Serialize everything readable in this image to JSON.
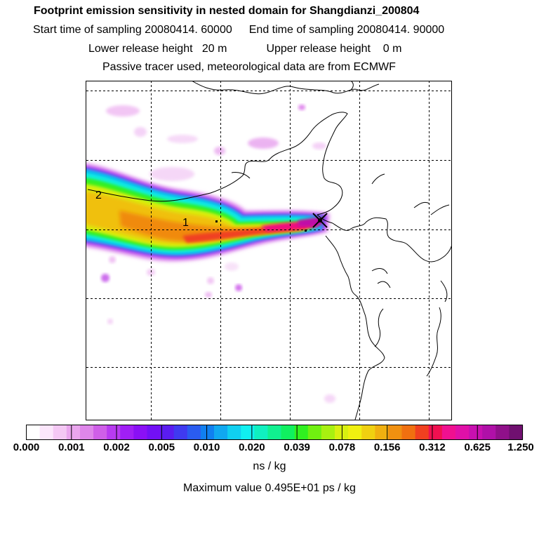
{
  "header": {
    "title": "Footprint emission sensitivity in nested domain for Shangdianzi_200804",
    "start_label": "Start time of sampling 20080414. 60000",
    "end_label": "End time of sampling 20080414. 90000",
    "lower_label": "Lower release height   20 m",
    "upper_label": "Upper release height    0 m",
    "tracer_label": "Passive tracer used, meteorological data are from ECMWF"
  },
  "map": {
    "contour_labels": [
      "1",
      "2"
    ]
  },
  "colorbar": {
    "ticks": [
      "0.000",
      "0.001",
      "0.002",
      "0.005",
      "0.010",
      "0.020",
      "0.039",
      "0.078",
      "0.156",
      "0.312",
      "0.625",
      "1.250"
    ],
    "colors": [
      "#ffffff",
      "#fbe6fb",
      "#f4c8f4",
      "#eaa6ee",
      "#de86ea",
      "#cf5fe8",
      "#b83bf0",
      "#a01ff5",
      "#8a10f5",
      "#7210f5",
      "#5a1cf0",
      "#3f3af0",
      "#2a5cf0",
      "#1080f0",
      "#10a8f0",
      "#10cff0",
      "#10f0f0",
      "#10f0c0",
      "#10f090",
      "#10f060",
      "#30f020",
      "#70f010",
      "#a8f010",
      "#d8f010",
      "#f0f010",
      "#f0d010",
      "#f0b010",
      "#f09010",
      "#f07010",
      "#f04020",
      "#f01050",
      "#f01090",
      "#e010a8",
      "#c810b0",
      "#b010a8",
      "#90108a",
      "#701070"
    ],
    "unit": "ns / kg",
    "max_value": "Maximum value  0.495E+01 ps / kg"
  }
}
